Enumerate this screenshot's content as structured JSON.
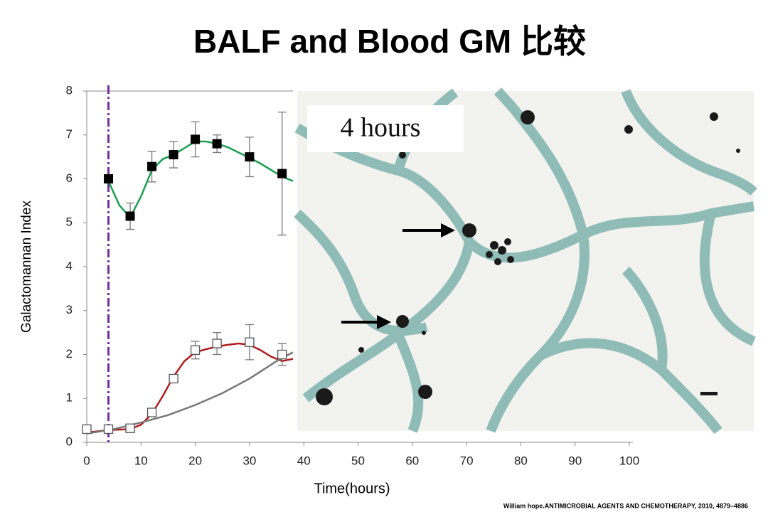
{
  "title": "BALF and Blood  GM 比较",
  "chart_data": {
    "type": "scatter",
    "x_label": "Time(hours)",
    "y_label": "Galactomannan Index",
    "xlim": [
      0,
      100
    ],
    "xticks": [
      0,
      10,
      20,
      30,
      40,
      50,
      60,
      70,
      80,
      90,
      100
    ],
    "ylim": [
      0,
      8
    ],
    "yticks": [
      0,
      1,
      2,
      3,
      4,
      5,
      6,
      7,
      8
    ],
    "vline": {
      "x": 4,
      "color": "#7030a0"
    },
    "series": [
      {
        "marker": "filled",
        "color": "#000000",
        "x": [
          4,
          8,
          12,
          16,
          20,
          24,
          30,
          36
        ],
        "values": [
          6.0,
          5.15,
          6.28,
          6.55,
          6.9,
          6.8,
          6.5,
          6.12
        ],
        "errors": [
          0.05,
          0.3,
          0.35,
          0.3,
          0.4,
          0.2,
          0.45,
          1.4
        ]
      },
      {
        "marker": "open",
        "color": "#555555",
        "x": [
          0,
          4,
          8,
          12,
          16,
          20,
          24,
          30,
          36
        ],
        "values": [
          0.3,
          0.3,
          0.32,
          0.68,
          1.45,
          2.1,
          2.25,
          2.28,
          2.0
        ],
        "errors": [
          0.05,
          0.05,
          0.05,
          0.05,
          0.05,
          0.2,
          0.25,
          0.4,
          0.25
        ]
      }
    ],
    "fits": [
      {
        "color": "#1aa050",
        "x": [
          4,
          6,
          8,
          10,
          12,
          14,
          16,
          18,
          20,
          22,
          24,
          26,
          28,
          30,
          32,
          34,
          36,
          38
        ],
        "values": [
          5.95,
          5.4,
          5.12,
          5.6,
          6.2,
          6.45,
          6.55,
          6.7,
          6.85,
          6.85,
          6.8,
          6.72,
          6.6,
          6.48,
          6.35,
          6.2,
          6.05,
          5.95
        ]
      },
      {
        "color": "#b01c1c",
        "x": [
          0,
          4,
          8,
          10,
          12,
          14,
          16,
          18,
          20,
          22,
          24,
          26,
          28,
          30,
          32,
          34,
          36,
          38
        ],
        "values": [
          0.22,
          0.28,
          0.3,
          0.4,
          0.65,
          1.05,
          1.5,
          1.85,
          2.05,
          2.12,
          2.18,
          2.22,
          2.25,
          2.22,
          2.1,
          1.95,
          1.85,
          1.9
        ]
      },
      {
        "color": "#777777",
        "x": [
          0,
          5,
          10,
          15,
          20,
          25,
          30,
          35,
          38
        ],
        "values": [
          0.2,
          0.3,
          0.45,
          0.62,
          0.85,
          1.12,
          1.45,
          1.85,
          2.05
        ]
      }
    ]
  },
  "image": {
    "label": "4 hours"
  },
  "citation": "William hope.ANTIMICROBIAL AGENTS AND CHEMOTHERAPY, 2010, 4879–4886"
}
